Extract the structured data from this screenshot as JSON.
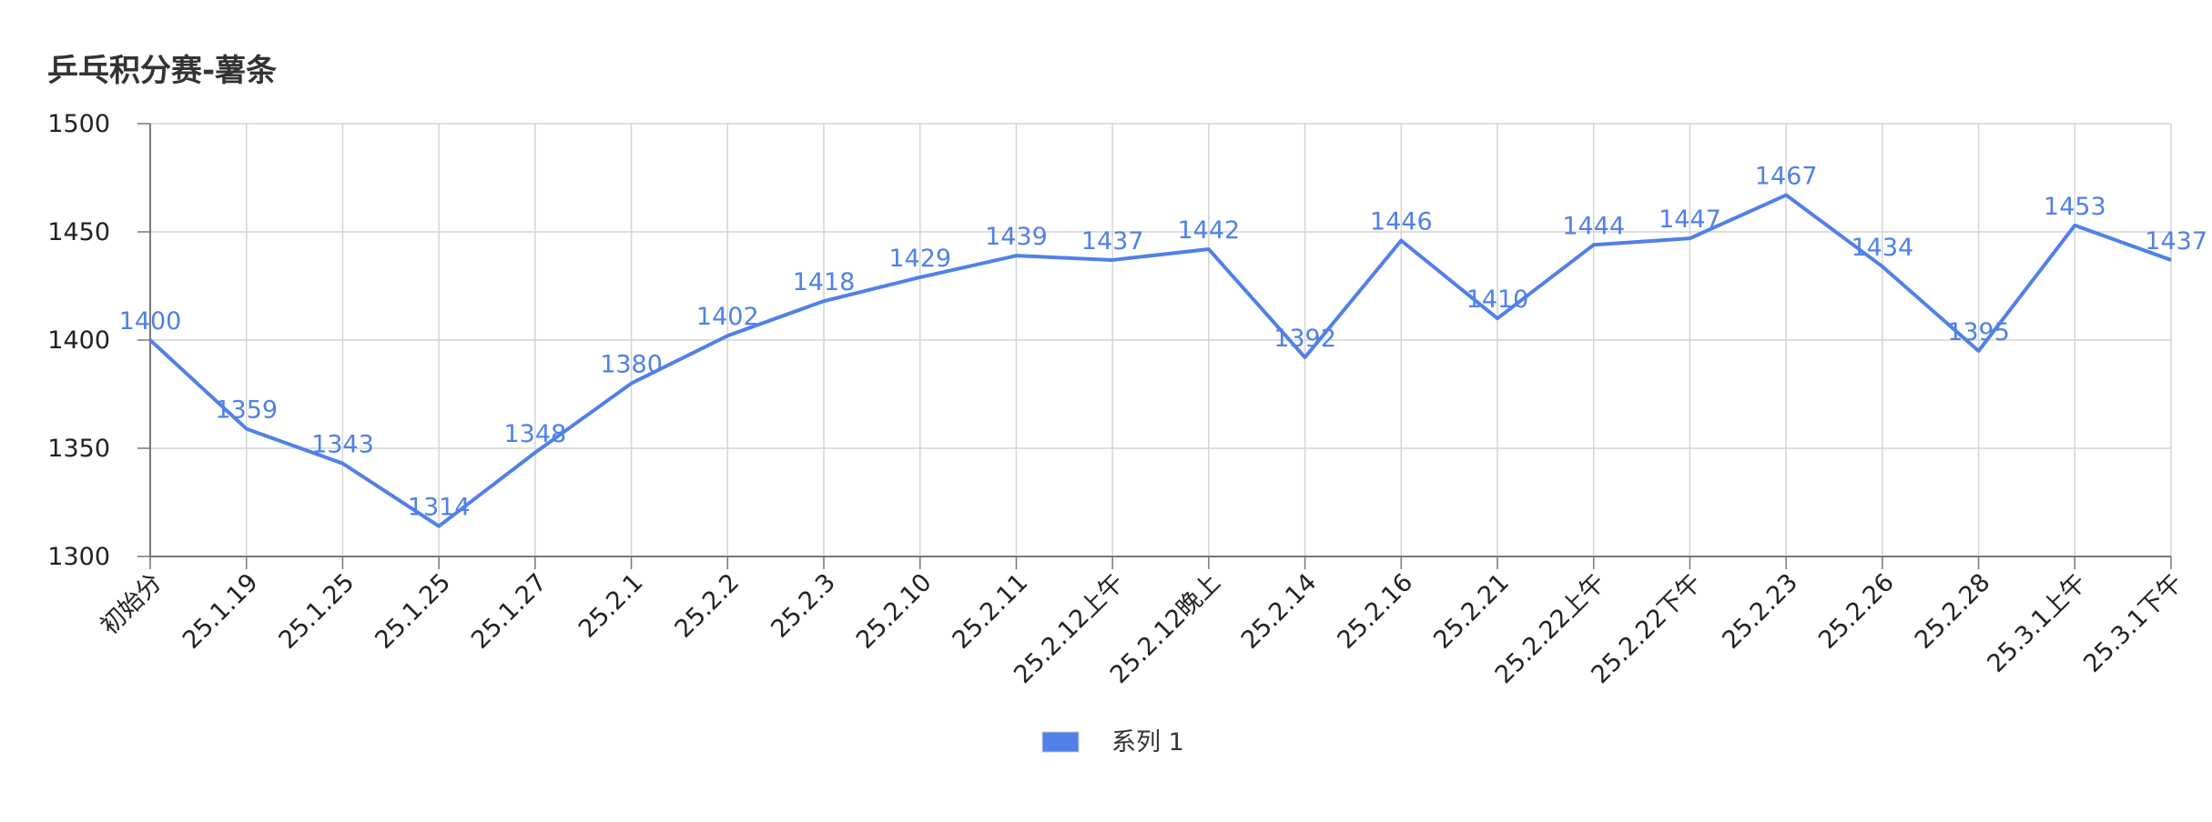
{
  "chart_data": {
    "type": "line",
    "title": "乒乓积分赛-薯条",
    "xlabel": "",
    "ylabel": "",
    "ylim": [
      1300,
      1500
    ],
    "yticks": [
      1300,
      1350,
      1400,
      1450,
      1500
    ],
    "grid": true,
    "legend_position": "bottom",
    "categories": [
      "初始分",
      "25.1.19",
      "25.1.25",
      "25.1.25",
      "25.1.27",
      "25.2.1",
      "25.2.2",
      "25.2.3",
      "25.2.10",
      "25.2.11",
      "25.2.12上午",
      "25.2.12晚上",
      "25.2.14",
      "25.2.16",
      "25.2.21",
      "25.2.22上午",
      "25.2.22下午",
      "25.2.23",
      "25.2.26",
      "25.2.28",
      "25.3.1上午",
      "25.3.1下午"
    ],
    "series": [
      {
        "name": "系列 1",
        "color": "#5080e8",
        "values": [
          1400,
          1359,
          1343,
          1314,
          1348,
          1380,
          1402,
          1418,
          1429,
          1439,
          1437,
          1442,
          1392,
          1446,
          1410,
          1444,
          1447,
          1467,
          1434,
          1395,
          1453,
          1437
        ]
      }
    ]
  }
}
